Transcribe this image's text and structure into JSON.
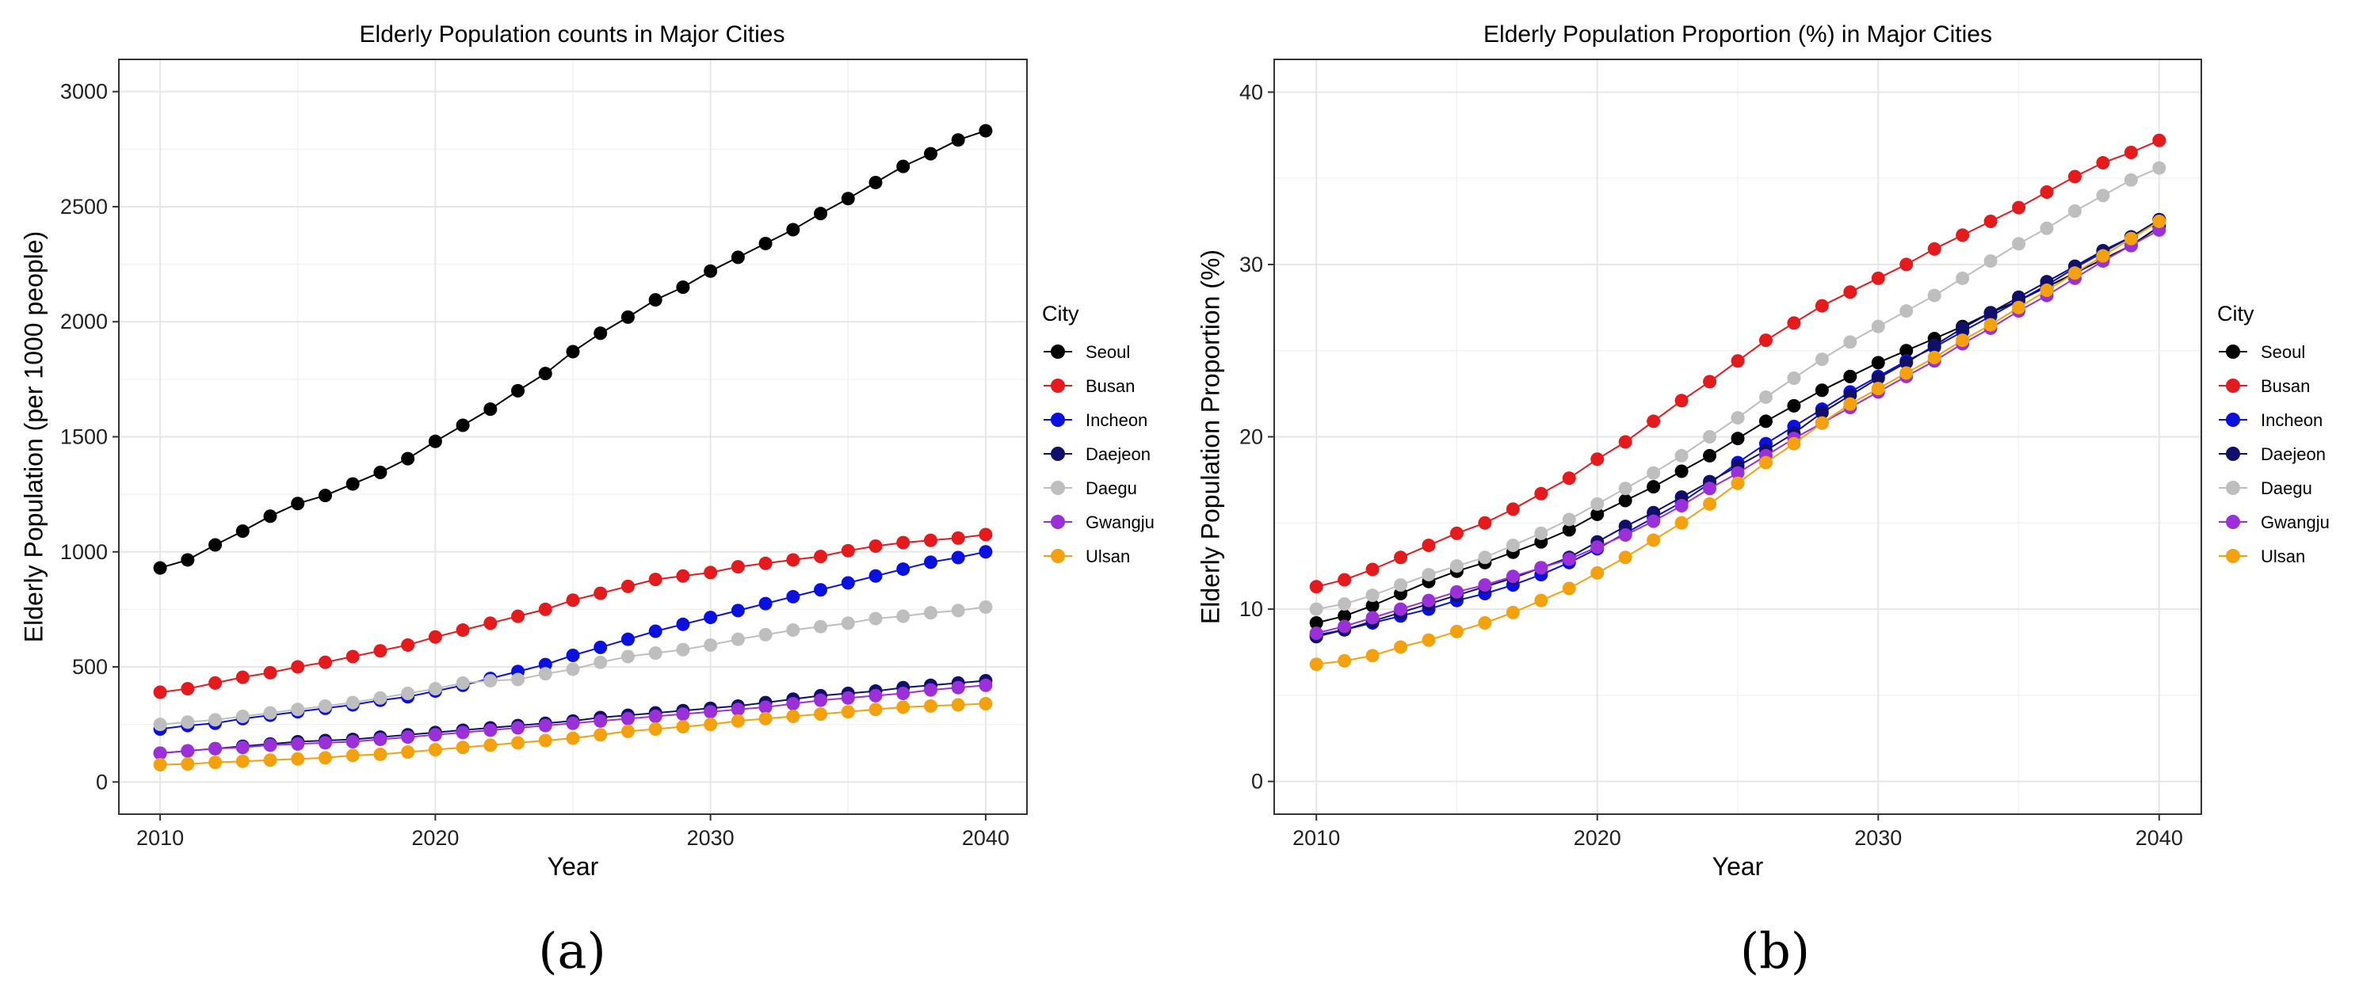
{
  "chart_data": [
    {
      "type": "line",
      "caption": "(a)",
      "title": "Elderly Population counts in Major Cities",
      "xlabel": "Year",
      "ylabel": "Elderly Population (per 1000 people)",
      "xlim": [
        2008.5,
        2041.5
      ],
      "ylim": [
        -140,
        3140
      ],
      "xticks": [
        2010,
        2020,
        2030,
        2040
      ],
      "yticks": [
        0,
        500,
        1000,
        1500,
        2000,
        2500,
        3000
      ],
      "legend_title": "City",
      "legend_position": "right",
      "grid": true,
      "x": [
        2010,
        2011,
        2012,
        2013,
        2014,
        2015,
        2016,
        2017,
        2018,
        2019,
        2020,
        2021,
        2022,
        2023,
        2024,
        2025,
        2026,
        2027,
        2028,
        2029,
        2030,
        2031,
        2032,
        2033,
        2034,
        2035,
        2036,
        2037,
        2038,
        2039,
        2040
      ],
      "series": [
        {
          "name": "Seoul",
          "color": "#000000",
          "values": [
            930,
            965,
            1030,
            1090,
            1155,
            1210,
            1245,
            1295,
            1345,
            1405,
            1480,
            1550,
            1620,
            1700,
            1775,
            1870,
            1950,
            2020,
            2095,
            2150,
            2220,
            2280,
            2340,
            2400,
            2470,
            2535,
            2605,
            2675,
            2730,
            2790,
            2830
          ]
        },
        {
          "name": "Busan",
          "color": "#e41a1c",
          "values": [
            390,
            405,
            430,
            455,
            475,
            500,
            520,
            545,
            570,
            595,
            630,
            660,
            690,
            720,
            750,
            790,
            820,
            850,
            880,
            895,
            910,
            935,
            950,
            965,
            980,
            1005,
            1025,
            1040,
            1050,
            1060,
            1075
          ]
        },
        {
          "name": "Incheon",
          "color": "#0a10e0",
          "values": [
            230,
            245,
            255,
            275,
            290,
            305,
            320,
            335,
            355,
            370,
            395,
            420,
            450,
            480,
            510,
            550,
            585,
            620,
            655,
            685,
            715,
            745,
            775,
            805,
            835,
            865,
            895,
            925,
            955,
            975,
            1000
          ]
        },
        {
          "name": "Daejeon",
          "color": "#10106b",
          "values": [
            125,
            135,
            145,
            155,
            165,
            175,
            180,
            185,
            195,
            205,
            215,
            225,
            235,
            245,
            255,
            265,
            280,
            290,
            300,
            310,
            320,
            330,
            345,
            360,
            375,
            385,
            395,
            410,
            420,
            430,
            440
          ]
        },
        {
          "name": "Daegu",
          "color": "#bebebe",
          "values": [
            250,
            260,
            270,
            285,
            300,
            315,
            330,
            345,
            365,
            385,
            405,
            430,
            440,
            445,
            470,
            490,
            520,
            545,
            560,
            575,
            595,
            620,
            640,
            660,
            675,
            690,
            710,
            720,
            735,
            745,
            760
          ]
        },
        {
          "name": "Gwangju",
          "color": "#9b30d8",
          "values": [
            125,
            135,
            145,
            150,
            160,
            165,
            170,
            175,
            185,
            195,
            205,
            215,
            225,
            235,
            245,
            255,
            265,
            275,
            285,
            295,
            305,
            315,
            325,
            340,
            355,
            365,
            375,
            385,
            400,
            410,
            420
          ]
        },
        {
          "name": "Ulsan",
          "color": "#f4a10f",
          "values": [
            75,
            78,
            85,
            90,
            95,
            100,
            105,
            115,
            120,
            130,
            140,
            150,
            160,
            170,
            180,
            190,
            205,
            220,
            230,
            240,
            250,
            265,
            275,
            285,
            295,
            305,
            315,
            325,
            330,
            335,
            340
          ]
        }
      ]
    },
    {
      "type": "line",
      "caption": "(b)",
      "title": "Elderly Population Proportion (%) in Major Cities",
      "xlabel": "Year",
      "ylabel": "Elderly Population Proportion (%)",
      "xlim": [
        2008.5,
        2041.5
      ],
      "ylim": [
        -1.9,
        41.9
      ],
      "xticks": [
        2010,
        2020,
        2030,
        2040
      ],
      "yticks": [
        0,
        10,
        20,
        30,
        40
      ],
      "legend_title": "City",
      "legend_position": "right",
      "grid": true,
      "x": [
        2010,
        2011,
        2012,
        2013,
        2014,
        2015,
        2016,
        2017,
        2018,
        2019,
        2020,
        2021,
        2022,
        2023,
        2024,
        2025,
        2026,
        2027,
        2028,
        2029,
        2030,
        2031,
        2032,
        2033,
        2034,
        2035,
        2036,
        2037,
        2038,
        2039,
        2040
      ],
      "series": [
        {
          "name": "Seoul",
          "color": "#000000",
          "values": [
            9.2,
            9.6,
            10.2,
            10.9,
            11.6,
            12.2,
            12.7,
            13.3,
            13.9,
            14.6,
            15.5,
            16.3,
            17.1,
            18.0,
            18.9,
            19.9,
            20.9,
            21.8,
            22.7,
            23.5,
            24.3,
            25.0,
            25.7,
            26.4,
            27.2,
            27.9,
            28.7,
            29.5,
            30.3,
            31.1,
            32.2
          ]
        },
        {
          "name": "Busan",
          "color": "#e41a1c",
          "values": [
            11.3,
            11.7,
            12.3,
            13.0,
            13.7,
            14.4,
            15.0,
            15.8,
            16.7,
            17.6,
            18.7,
            19.7,
            20.9,
            22.1,
            23.2,
            24.4,
            25.6,
            26.6,
            27.6,
            28.4,
            29.2,
            30.0,
            30.9,
            31.7,
            32.5,
            33.3,
            34.2,
            35.1,
            35.9,
            36.5,
            37.2
          ]
        },
        {
          "name": "Incheon",
          "color": "#0a10e0",
          "values": [
            8.5,
            8.8,
            9.2,
            9.6,
            10.0,
            10.5,
            10.9,
            11.4,
            12.0,
            12.7,
            13.5,
            14.4,
            15.3,
            16.2,
            17.3,
            18.5,
            19.6,
            20.6,
            21.6,
            22.6,
            23.5,
            24.4,
            25.2,
            26.1,
            27.0,
            27.9,
            28.8,
            29.8,
            30.7,
            31.6,
            32.6
          ]
        },
        {
          "name": "Daejeon",
          "color": "#10106b",
          "values": [
            8.4,
            8.8,
            9.3,
            9.8,
            10.3,
            10.8,
            11.3,
            11.8,
            12.4,
            13.0,
            13.9,
            14.8,
            15.6,
            16.5,
            17.4,
            18.3,
            19.2,
            20.2,
            21.4,
            22.4,
            23.4,
            24.3,
            25.3,
            26.3,
            27.2,
            28.1,
            29.0,
            29.9,
            30.8,
            31.6,
            32.6
          ]
        },
        {
          "name": "Daegu",
          "color": "#bebebe",
          "values": [
            10.0,
            10.3,
            10.8,
            11.4,
            12.0,
            12.5,
            13.0,
            13.7,
            14.4,
            15.2,
            16.1,
            17.0,
            17.9,
            18.9,
            20.0,
            21.1,
            22.3,
            23.4,
            24.5,
            25.5,
            26.4,
            27.3,
            28.2,
            29.2,
            30.2,
            31.2,
            32.1,
            33.1,
            34.0,
            34.9,
            35.6
          ]
        },
        {
          "name": "Gwangju",
          "color": "#9b30d8",
          "values": [
            8.6,
            9.0,
            9.5,
            10.0,
            10.5,
            11.0,
            11.4,
            11.9,
            12.4,
            12.9,
            13.6,
            14.3,
            15.1,
            16.0,
            17.0,
            17.9,
            18.9,
            19.9,
            20.8,
            21.7,
            22.6,
            23.5,
            24.4,
            25.4,
            26.3,
            27.3,
            28.2,
            29.2,
            30.2,
            31.1,
            32.0
          ]
        },
        {
          "name": "Ulsan",
          "color": "#f4a10f",
          "values": [
            6.8,
            7.0,
            7.3,
            7.8,
            8.2,
            8.7,
            9.2,
            9.8,
            10.5,
            11.2,
            12.1,
            13.0,
            14.0,
            15.0,
            16.1,
            17.3,
            18.5,
            19.6,
            20.8,
            21.9,
            22.8,
            23.7,
            24.6,
            25.6,
            26.5,
            27.5,
            28.5,
            29.5,
            30.5,
            31.5,
            32.5
          ]
        }
      ]
    }
  ]
}
